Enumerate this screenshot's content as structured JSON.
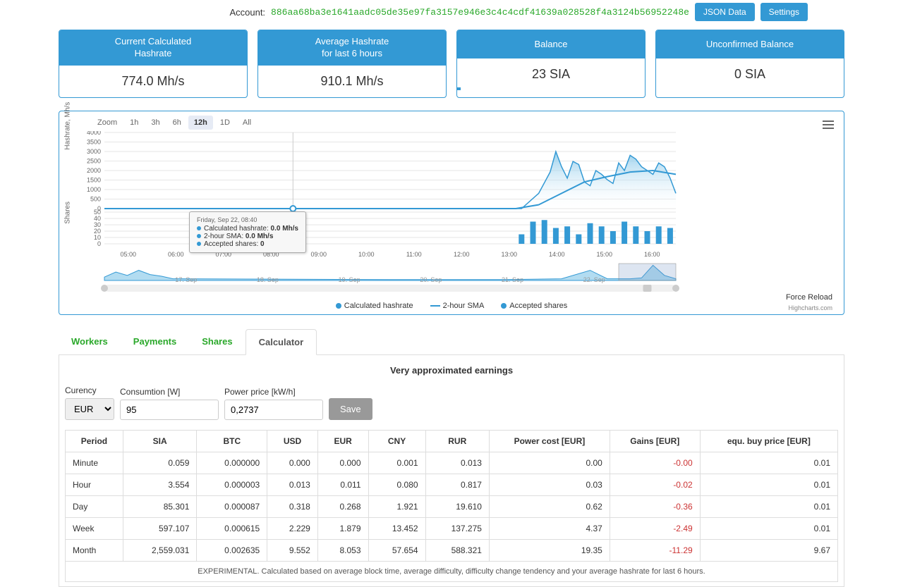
{
  "account": {
    "label": "Account:",
    "hash": "886aa68ba3e1641aadc05de35e97fa3157e946e3c4c4cdf41639a028528f4a3124b56952248e",
    "json_button": "JSON Data",
    "settings_button": "Settings"
  },
  "stats": [
    {
      "title": "Current Calculated\nHashrate",
      "value": "774.0 Mh/s",
      "progress": 0
    },
    {
      "title": "Average Hashrate\nfor last 6 hours",
      "value": "910.1 Mh/s",
      "progress": 0
    },
    {
      "title": "Balance",
      "value": "23 SIA",
      "progress": 2
    },
    {
      "title": "Unconfirmed Balance",
      "value": "0 SIA",
      "progress": 0
    }
  ],
  "chart": {
    "zoom_label": "Zoom",
    "zoom_options": [
      "1h",
      "3h",
      "6h",
      "12h",
      "1D",
      "All"
    ],
    "zoom_active": "12h",
    "yaxis1_label": "Hashrate, Mh/s",
    "yaxis2_label": "Shares",
    "yaxis1_ticks": [
      "0",
      "500",
      "1000",
      "1500",
      "2000",
      "2500",
      "3000",
      "3500",
      "4000"
    ],
    "yaxis2_ticks": [
      "0",
      "10",
      "20",
      "30",
      "40",
      "50"
    ],
    "xaxis_ticks": [
      "05:00",
      "06:00",
      "07:00",
      "08:00",
      "09:00",
      "10:00",
      "11:00",
      "12:00",
      "13:00",
      "14:00",
      "15:00",
      "16:00"
    ],
    "nav_ticks": [
      "17. Sep",
      "18. Sep",
      "19. Sep",
      "20. Sep",
      "21. Sep",
      "22. Sep"
    ],
    "tooltip": {
      "title": "Friday, Sep 22, 08:40",
      "rows": [
        {
          "label": "Calculated hashrate:",
          "value": "0.0 Mh/s"
        },
        {
          "label": "2-hour SMA:",
          "value": "0.0 Mh/s"
        },
        {
          "label": "Accepted shares:",
          "value": "0"
        }
      ]
    },
    "legend": [
      {
        "type": "dot",
        "color": "#3399d4",
        "label": "Calculated hashrate"
      },
      {
        "type": "line",
        "color": "#3399d4",
        "label": "2-hour SMA"
      },
      {
        "type": "dot",
        "color": "#3399d4",
        "label": "Accepted shares"
      }
    ],
    "force_reload": "Force Reload",
    "credit": "Highcharts.com",
    "colors": {
      "area_fill_top": "#7fc4e8",
      "area_fill_bottom": "#ffffff",
      "line": "#3399d4",
      "sma_line": "#3399d4",
      "bar": "#3399d4",
      "grid": "#e6e6e6",
      "cursor": "#cccccc",
      "marker": "#3399d4"
    },
    "hashrate_series": [
      {
        "x": 0.0,
        "y": 0
      },
      {
        "x": 0.72,
        "y": 0
      },
      {
        "x": 0.73,
        "y": 0
      },
      {
        "x": 0.76,
        "y": 0.2
      },
      {
        "x": 0.78,
        "y": 0.48
      },
      {
        "x": 0.79,
        "y": 0.75
      },
      {
        "x": 0.8,
        "y": 0.55
      },
      {
        "x": 0.81,
        "y": 0.4
      },
      {
        "x": 0.82,
        "y": 0.62
      },
      {
        "x": 0.83,
        "y": 0.58
      },
      {
        "x": 0.84,
        "y": 0.35
      },
      {
        "x": 0.85,
        "y": 0.3
      },
      {
        "x": 0.86,
        "y": 0.5
      },
      {
        "x": 0.87,
        "y": 0.45
      },
      {
        "x": 0.88,
        "y": 0.38
      },
      {
        "x": 0.89,
        "y": 0.33
      },
      {
        "x": 0.9,
        "y": 0.6
      },
      {
        "x": 0.91,
        "y": 0.5
      },
      {
        "x": 0.92,
        "y": 0.7
      },
      {
        "x": 0.93,
        "y": 0.65
      },
      {
        "x": 0.94,
        "y": 0.55
      },
      {
        "x": 0.95,
        "y": 0.5
      },
      {
        "x": 0.96,
        "y": 0.45
      },
      {
        "x": 0.97,
        "y": 0.6
      },
      {
        "x": 0.98,
        "y": 0.55
      },
      {
        "x": 0.99,
        "y": 0.4
      },
      {
        "x": 1.0,
        "y": 0.2
      }
    ],
    "sma_series": [
      {
        "x": 0.0,
        "y": 0
      },
      {
        "x": 0.72,
        "y": 0
      },
      {
        "x": 0.76,
        "y": 0.05
      },
      {
        "x": 0.8,
        "y": 0.2
      },
      {
        "x": 0.84,
        "y": 0.35
      },
      {
        "x": 0.88,
        "y": 0.42
      },
      {
        "x": 0.92,
        "y": 0.48
      },
      {
        "x": 0.96,
        "y": 0.5
      },
      {
        "x": 1.0,
        "y": 0.45
      }
    ],
    "bars": [
      {
        "x": 0.73,
        "h": 0.3
      },
      {
        "x": 0.75,
        "h": 0.7
      },
      {
        "x": 0.77,
        "h": 0.75
      },
      {
        "x": 0.79,
        "h": 0.5
      },
      {
        "x": 0.81,
        "h": 0.55
      },
      {
        "x": 0.83,
        "h": 0.3
      },
      {
        "x": 0.85,
        "h": 0.65
      },
      {
        "x": 0.87,
        "h": 0.55
      },
      {
        "x": 0.89,
        "h": 0.4
      },
      {
        "x": 0.91,
        "h": 0.7
      },
      {
        "x": 0.93,
        "h": 0.55
      },
      {
        "x": 0.95,
        "h": 0.4
      },
      {
        "x": 0.97,
        "h": 0.55
      },
      {
        "x": 0.99,
        "h": 0.5
      }
    ],
    "nav_series": [
      {
        "x": 0.0,
        "y": 0.2
      },
      {
        "x": 0.02,
        "y": 0.5
      },
      {
        "x": 0.04,
        "y": 0.3
      },
      {
        "x": 0.06,
        "y": 0.6
      },
      {
        "x": 0.08,
        "y": 0.35
      },
      {
        "x": 0.1,
        "y": 0.25
      },
      {
        "x": 0.12,
        "y": 0.1
      },
      {
        "x": 0.5,
        "y": 0.05
      },
      {
        "x": 0.7,
        "y": 0.05
      },
      {
        "x": 0.8,
        "y": 0.1
      },
      {
        "x": 0.85,
        "y": 0.6
      },
      {
        "x": 0.88,
        "y": 0.1
      },
      {
        "x": 0.92,
        "y": 0.1
      },
      {
        "x": 0.94,
        "y": 0.15
      },
      {
        "x": 0.96,
        "y": 0.9
      },
      {
        "x": 0.98,
        "y": 0.3
      },
      {
        "x": 1.0,
        "y": 0.1
      }
    ],
    "nav_window": {
      "start": 0.9,
      "end": 1.0
    },
    "cursor_x": 0.33
  },
  "tabs": {
    "items": [
      "Workers",
      "Payments",
      "Shares",
      "Calculator"
    ],
    "active": "Calculator"
  },
  "calculator": {
    "title": "Very approximated earnings",
    "controls": {
      "currency_label": "Curency",
      "currency_value": "EUR",
      "consumption_label": "Consumtion [W]",
      "consumption_value": "95",
      "power_label": "Power price [kW/h]",
      "power_value": "0,2737",
      "save_label": "Save"
    },
    "columns": [
      "Period",
      "SIA",
      "BTC",
      "USD",
      "EUR",
      "CNY",
      "RUR",
      "Power cost [EUR]",
      "Gains [EUR]",
      "equ. buy price [EUR]"
    ],
    "rows": [
      [
        "Minute",
        "0.059",
        "0.000000",
        "0.000",
        "0.000",
        "0.001",
        "0.013",
        "0.00",
        "-0.00",
        "0.01"
      ],
      [
        "Hour",
        "3.554",
        "0.000003",
        "0.013",
        "0.011",
        "0.080",
        "0.817",
        "0.03",
        "-0.02",
        "0.01"
      ],
      [
        "Day",
        "85.301",
        "0.000087",
        "0.318",
        "0.268",
        "1.921",
        "19.610",
        "0.62",
        "-0.36",
        "0.01"
      ],
      [
        "Week",
        "597.107",
        "0.000615",
        "2.229",
        "1.879",
        "13.452",
        "137.275",
        "4.37",
        "-2.49",
        "0.01"
      ],
      [
        "Month",
        "2,559.031",
        "0.002635",
        "9.552",
        "8.053",
        "57.654",
        "588.321",
        "19.35",
        "-11.29",
        "9.67"
      ]
    ],
    "footnote": "EXPERIMENTAL. Calculated based on average block time, average difficulty, difficulty change tendency and your average hashrate for last 6 hours."
  }
}
